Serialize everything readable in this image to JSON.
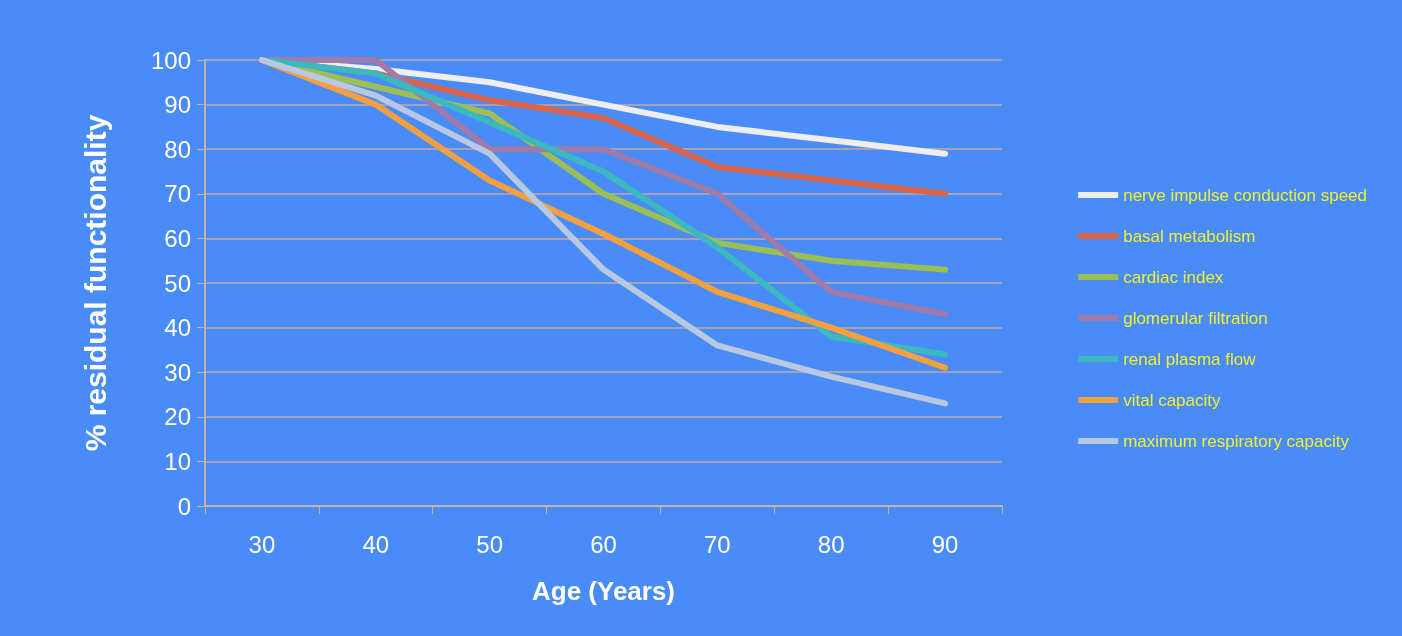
{
  "chart_data": {
    "type": "line",
    "xlabel": "Age (Years)",
    "ylabel": "% residual functionality",
    "categories": [
      "30",
      "40",
      "50",
      "60",
      "70",
      "80",
      "90"
    ],
    "ylim": [
      0,
      100
    ],
    "yticks": [
      0,
      10,
      20,
      30,
      40,
      50,
      60,
      70,
      80,
      90,
      100
    ],
    "grid": "y",
    "legend": "right",
    "marker": "none",
    "line_style": "solid",
    "series": [
      {
        "name": "nerve impulse conduction speed",
        "color": "#eeeeee",
        "values": [
          100,
          98,
          95,
          90,
          85,
          82,
          79
        ]
      },
      {
        "name": "basal metabolism",
        "color": "#d9644a",
        "values": [
          100,
          97,
          91,
          87,
          76,
          73,
          70
        ]
      },
      {
        "name": "cardiac index",
        "color": "#9cbf55",
        "values": [
          100,
          94,
          88,
          70,
          59,
          55,
          53
        ]
      },
      {
        "name": "glomerular filtration",
        "color": "#a07aa8",
        "values": [
          100,
          100,
          80,
          80,
          70,
          48,
          43
        ]
      },
      {
        "name": "renal plasma flow",
        "color": "#3bb8c0",
        "values": [
          100,
          97,
          86,
          75,
          58,
          38,
          34
        ]
      },
      {
        "name": "vital capacity",
        "color": "#f5a040",
        "values": [
          100,
          90,
          73,
          61,
          48,
          40,
          31
        ]
      },
      {
        "name": "maximum respiratory capacity",
        "color": "#b8c8e0",
        "values": [
          100,
          92,
          79,
          53,
          36,
          29,
          23
        ]
      }
    ]
  }
}
